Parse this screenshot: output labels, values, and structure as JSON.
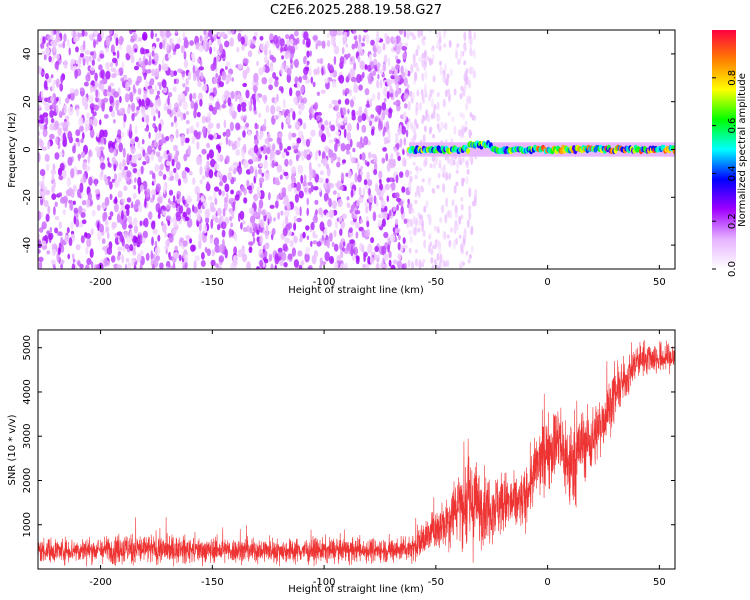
{
  "title": "C2E6.2025.288.19.58.G27",
  "chart_data": [
    {
      "type": "heatmap",
      "xlabel": "Height of straight line (km)",
      "ylabel": "Frequency (Hz)",
      "xlim": [
        -228,
        57
      ],
      "ylim": [
        -50,
        50
      ],
      "x_ticks": [
        -200,
        -150,
        -100,
        -50,
        0,
        50
      ],
      "y_ticks": [
        -40,
        -20,
        0,
        20,
        40
      ],
      "colorbar": {
        "label": "Normalized spectral amplitude",
        "range": [
          0.0,
          1.0
        ],
        "ticks": [
          "0.0",
          "0.2",
          "0.4",
          "0.6",
          "0.8"
        ],
        "colors": [
          "#ffffff",
          "#e6b3ff",
          "#a000ff",
          "#0000ff",
          "#00ffff",
          "#00ff00",
          "#ffff00",
          "#ff8000",
          "#ff0040"
        ]
      },
      "regions": [
        {
          "x_range": [
            -228,
            -62
          ],
          "y_range": [
            -50,
            50
          ],
          "amplitude_range": [
            0.05,
            0.25
          ],
          "description_level": "noise"
        },
        {
          "x_range": [
            -62,
            57
          ],
          "y_center": 0,
          "y_halfwidth": 3,
          "amplitude_range": [
            0.3,
            0.95
          ],
          "description_level": "signal"
        }
      ]
    },
    {
      "type": "line",
      "xlabel": "Height of straight line (km)",
      "ylabel": "SNR (10 * v/v)",
      "xlim": [
        -228,
        57
      ],
      "ylim": [
        0,
        5400
      ],
      "x_ticks": [
        -200,
        -150,
        -100,
        -50,
        0,
        50
      ],
      "y_ticks": [
        1000,
        2000,
        3000,
        4000,
        5000
      ],
      "color": "#ee3333",
      "series": [
        {
          "x": [
            -228,
            -200,
            -190,
            -150,
            -100,
            -70,
            -60,
            -50,
            -45,
            -40,
            -35,
            -30,
            -25,
            -20,
            -15,
            -10,
            -5,
            0,
            5,
            10,
            15,
            20,
            25,
            30,
            35,
            40,
            45,
            50,
            57
          ],
          "mean": [
            420,
            430,
            460,
            420,
            420,
            430,
            500,
            900,
            1100,
            1500,
            1500,
            1400,
            1400,
            1500,
            1450,
            1600,
            2300,
            2700,
            2900,
            2300,
            2800,
            2900,
            3400,
            3900,
            4300,
            4700,
            4800,
            4750,
            4800
          ],
          "spread": [
            300,
            300,
            400,
            300,
            300,
            300,
            350,
            500,
            700,
            900,
            1300,
            900,
            800,
            800,
            700,
            700,
            800,
            900,
            900,
            1200,
            900,
            800,
            700,
            600,
            500,
            450,
            400,
            400,
            350
          ]
        }
      ]
    }
  ]
}
